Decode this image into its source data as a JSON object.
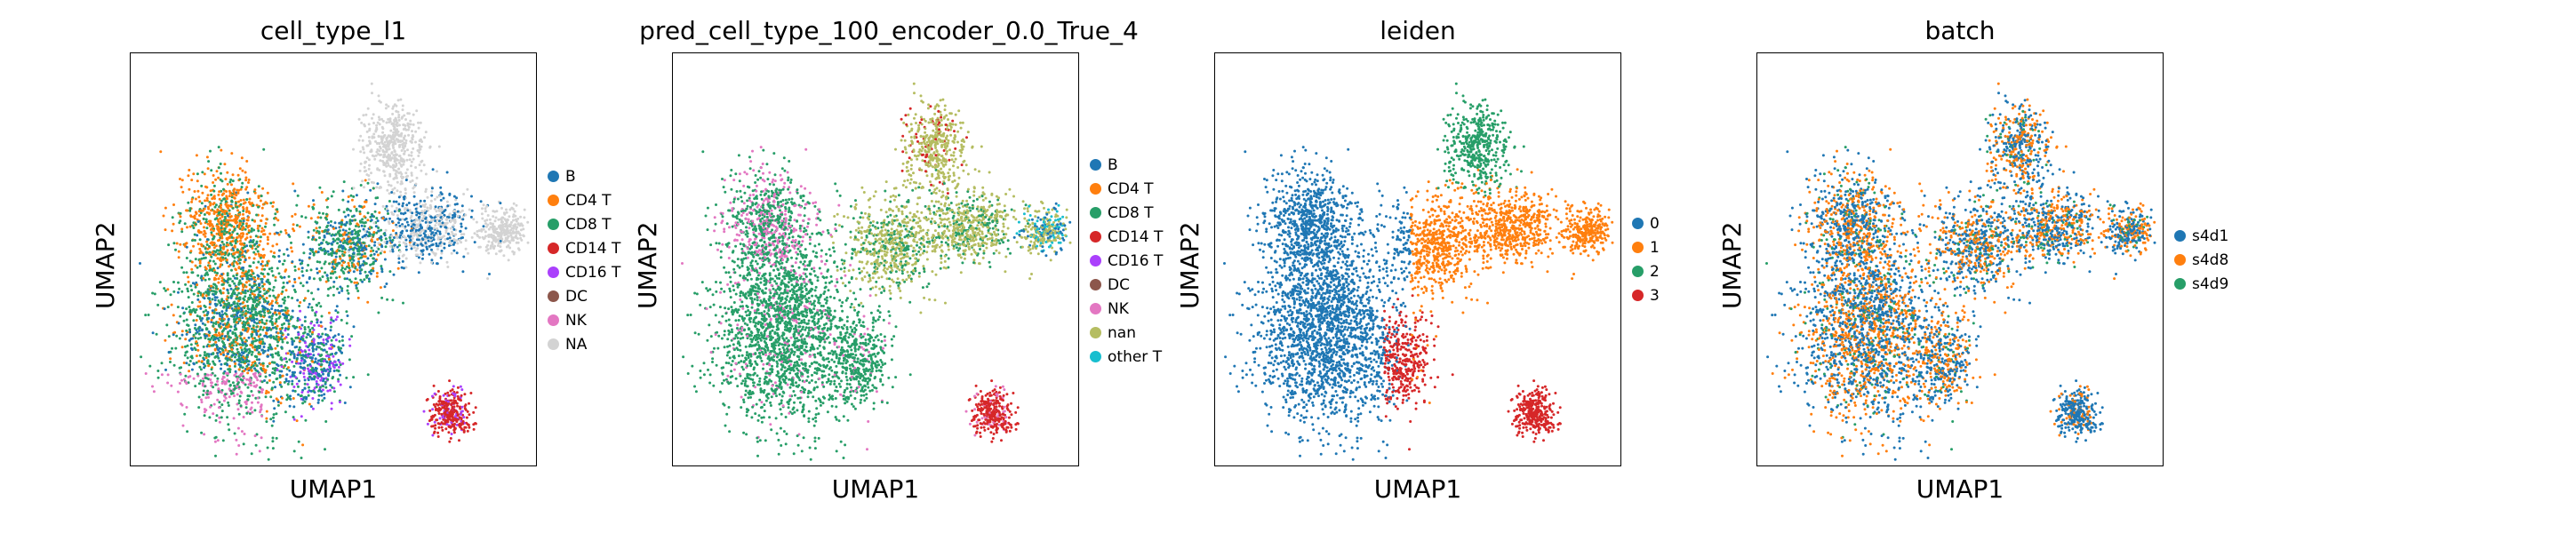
{
  "colors": {
    "tab10": [
      "#1f77b4",
      "#ff7f0e",
      "#279e68",
      "#d62728",
      "#aa40fc",
      "#8c564b",
      "#e377c2",
      "#b5bd61",
      "#17becf"
    ],
    "na": "#d3d3d3"
  },
  "chart_data": [
    {
      "type": "scatter",
      "title": "cell_type_l1",
      "xlabel": "UMAP1",
      "ylabel": "UMAP2",
      "grid": false,
      "legend_position": "right",
      "legend": [
        {
          "label": "B",
          "color": "#1f77b4"
        },
        {
          "label": "CD4 T",
          "color": "#ff7f0e"
        },
        {
          "label": "CD8 T",
          "color": "#279e68"
        },
        {
          "label": "CD14 T",
          "color": "#d62728"
        },
        {
          "label": "CD16 T",
          "color": "#aa40fc"
        },
        {
          "label": "DC",
          "color": "#8c564b"
        },
        {
          "label": "NK",
          "color": "#e377c2"
        },
        {
          "label": "NA",
          "color": "#d3d3d3"
        }
      ]
    },
    {
      "type": "scatter",
      "title": "pred_cell_type_100_encoder_0.0_True_4",
      "xlabel": "UMAP1",
      "ylabel": "UMAP2",
      "grid": false,
      "legend_position": "right",
      "legend": [
        {
          "label": "B",
          "color": "#1f77b4"
        },
        {
          "label": "CD4 T",
          "color": "#ff7f0e"
        },
        {
          "label": "CD8 T",
          "color": "#279e68"
        },
        {
          "label": "CD14 T",
          "color": "#d62728"
        },
        {
          "label": "CD16 T",
          "color": "#aa40fc"
        },
        {
          "label": "DC",
          "color": "#8c564b"
        },
        {
          "label": "NK",
          "color": "#e377c2"
        },
        {
          "label": "nan",
          "color": "#b5bd61"
        },
        {
          "label": "other T",
          "color": "#17becf"
        }
      ]
    },
    {
      "type": "scatter",
      "title": "leiden",
      "xlabel": "UMAP1",
      "ylabel": "UMAP2",
      "grid": false,
      "legend_position": "right",
      "legend": [
        {
          "label": "0",
          "color": "#1f77b4"
        },
        {
          "label": "1",
          "color": "#ff7f0e"
        },
        {
          "label": "2",
          "color": "#279e68"
        },
        {
          "label": "3",
          "color": "#d62728"
        }
      ]
    },
    {
      "type": "scatter",
      "title": "batch",
      "xlabel": "UMAP1",
      "ylabel": "UMAP2",
      "grid": false,
      "legend_position": "right",
      "legend": [
        {
          "label": "s4d1",
          "color": "#1f77b4"
        },
        {
          "label": "s4d8",
          "color": "#ff7f0e"
        },
        {
          "label": "s4d9",
          "color": "#279e68"
        }
      ]
    }
  ]
}
